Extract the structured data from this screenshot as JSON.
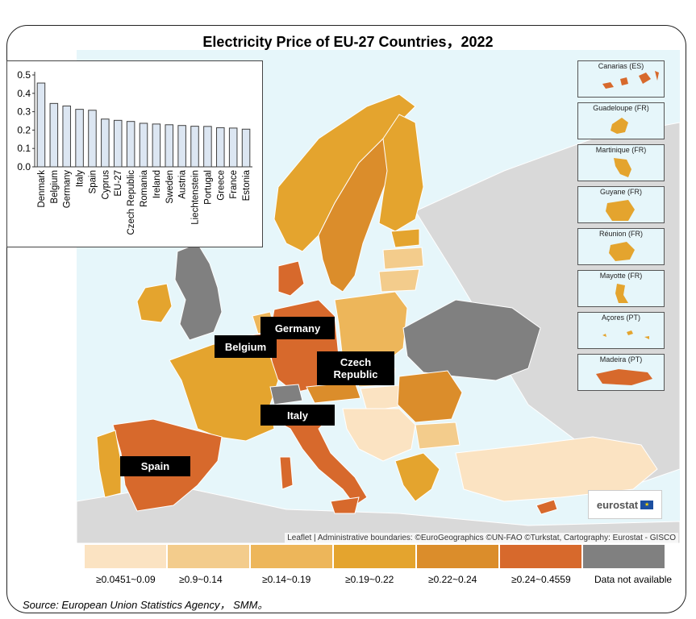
{
  "title": "Electricity Price of EU-27 Countries，2022",
  "source": "Source: European Union Statistics Agency， SMM。",
  "attribution": "Leaflet | Administrative boundaries: ©EuroGeographics ©UN-FAO ©Turkstat, Cartography: Eurostat - GISCO",
  "logo": "eurostat",
  "colors": {
    "sea": "#e6f6fa",
    "no_data": "#808080",
    "outside": "#d9d9d9",
    "bar_fill": "#dce6f2",
    "bar_stroke": "#404040"
  },
  "legend": [
    {
      "label": "≥0.0451~0.09",
      "color": "#fbe3c2"
    },
    {
      "label": "≥0.9~0.14",
      "color": "#f3cc8c"
    },
    {
      "label": "≥0.14~0.19",
      "color": "#edb65a"
    },
    {
      "label": "≥0.19~0.22",
      "color": "#e4a42e"
    },
    {
      "label": "≥0.22~0.24",
      "color": "#db8d2b"
    },
    {
      "label": "≥0.24~0.4559",
      "color": "#d7692c"
    },
    {
      "label": "Data not available",
      "color": "#808080"
    }
  ],
  "callouts": [
    {
      "name": "germany",
      "label": "Germany"
    },
    {
      "name": "belgium",
      "label": "Belgium"
    },
    {
      "name": "czech",
      "label": "Czech Republic"
    },
    {
      "name": "italy",
      "label": "Italy"
    },
    {
      "name": "spain",
      "label": "Spain"
    }
  ],
  "regions": [
    "Canarias (ES)",
    "Guadeloupe (FR)",
    "Martinique (FR)",
    "Guyane (FR)",
    "Réunion (FR)",
    "Mayotte (FR)",
    "Açores (PT)",
    "Madeira (PT)"
  ],
  "chart_data": {
    "type": "bar",
    "categories": [
      "Denmark",
      "Belgium",
      "Germany",
      "Italy",
      "Spain",
      "Cyprus",
      "EU-27",
      "Czech Republic",
      "Romania",
      "Ireland",
      "Sweden",
      "Austria",
      "Liechtenstein",
      "Portugal",
      "Greece",
      "France",
      "Estonia"
    ],
    "values": [
      0.456,
      0.345,
      0.331,
      0.313,
      0.308,
      0.26,
      0.253,
      0.247,
      0.237,
      0.233,
      0.229,
      0.225,
      0.221,
      0.22,
      0.213,
      0.211,
      0.205
    ],
    "yticks": [
      "0.0",
      "0.1",
      "0.2",
      "0.3",
      "0.4",
      "0.5"
    ],
    "ylim": [
      0,
      0.5
    ]
  }
}
